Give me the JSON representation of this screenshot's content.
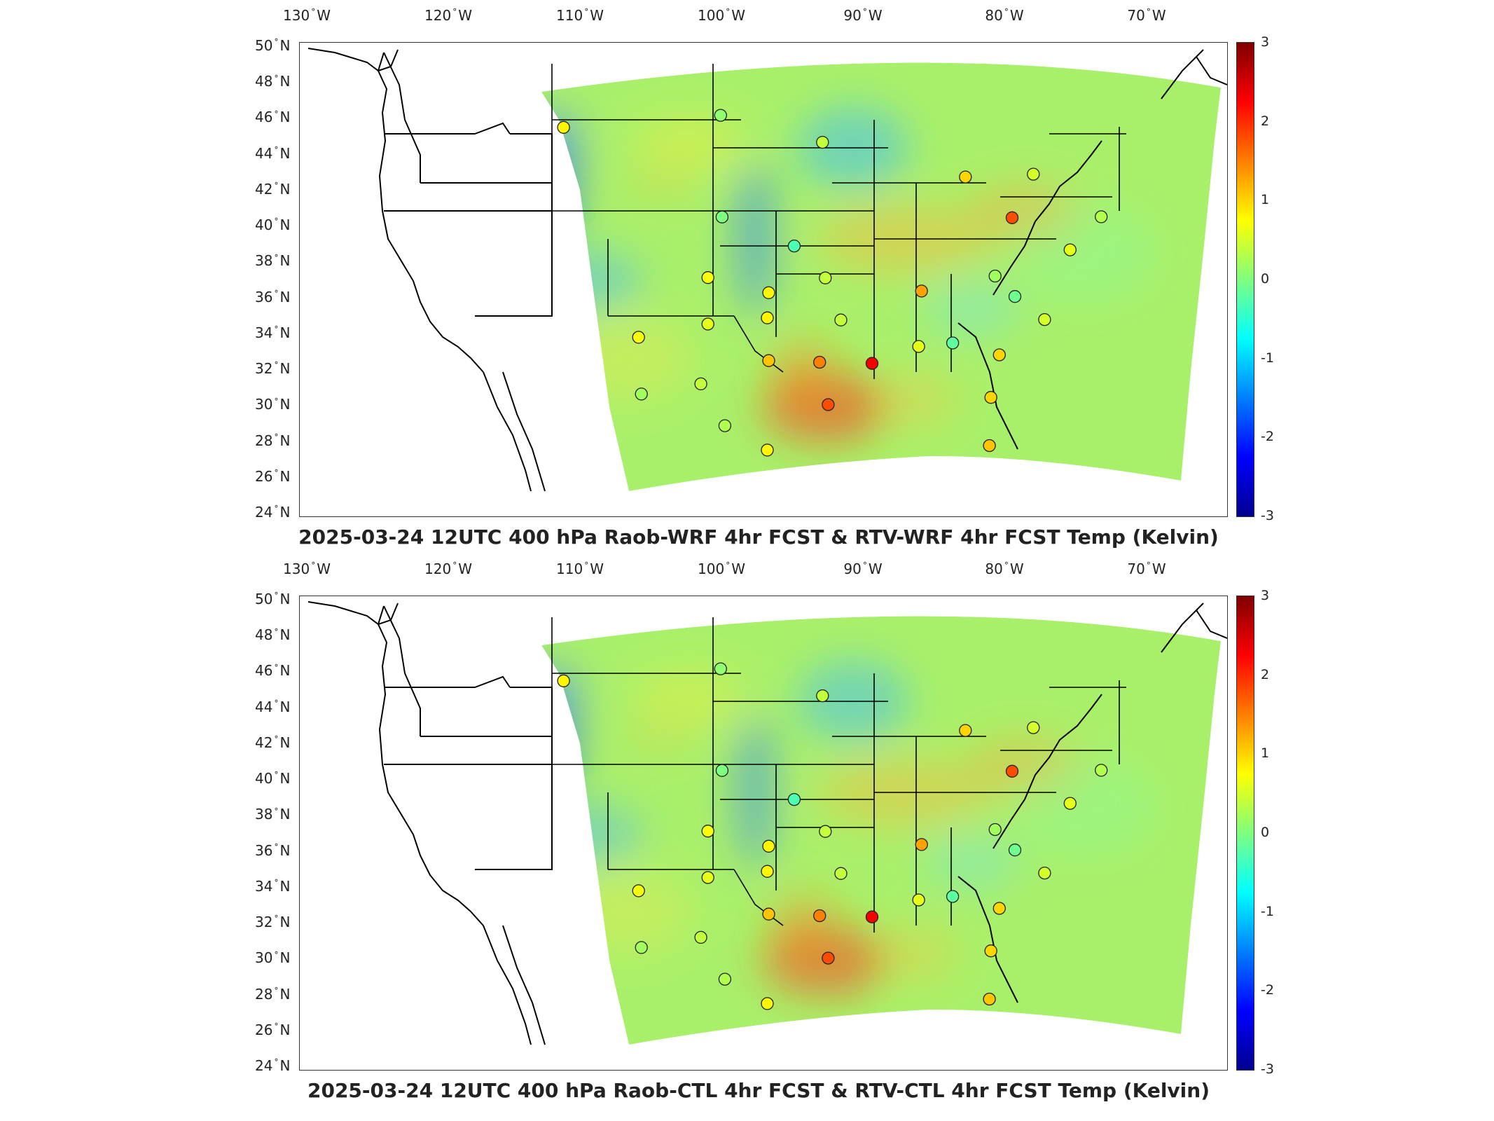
{
  "lon_labels": [
    {
      "deg": "130",
      "hemi": "W"
    },
    {
      "deg": "120",
      "hemi": "W"
    },
    {
      "deg": "110",
      "hemi": "W"
    },
    {
      "deg": "100",
      "hemi": "W"
    },
    {
      "deg": "90",
      "hemi": "W"
    },
    {
      "deg": "80",
      "hemi": "W"
    },
    {
      "deg": "70",
      "hemi": "W"
    }
  ],
  "lat_labels": [
    {
      "deg": "50",
      "hemi": "N"
    },
    {
      "deg": "48",
      "hemi": "N"
    },
    {
      "deg": "46",
      "hemi": "N"
    },
    {
      "deg": "44",
      "hemi": "N"
    },
    {
      "deg": "42",
      "hemi": "N"
    },
    {
      "deg": "40",
      "hemi": "N"
    },
    {
      "deg": "38",
      "hemi": "N"
    },
    {
      "deg": "36",
      "hemi": "N"
    },
    {
      "deg": "34",
      "hemi": "N"
    },
    {
      "deg": "32",
      "hemi": "N"
    },
    {
      "deg": "30",
      "hemi": "N"
    },
    {
      "deg": "28",
      "hemi": "N"
    },
    {
      "deg": "26",
      "hemi": "N"
    },
    {
      "deg": "24",
      "hemi": "N"
    }
  ],
  "colorbar": {
    "ticks": [
      "3",
      "2",
      "1",
      "0",
      "-1",
      "-2",
      "-3"
    ],
    "range": [
      -3,
      3
    ],
    "colormap": "jet"
  },
  "panels": [
    {
      "id": "top",
      "title": "2025-03-24 12UTC 400 hPa Raob-WRF 4hr FCST & RTV-WRF 4hr FCST Temp (Kelvin)"
    },
    {
      "id": "bottom",
      "title": "2025-03-24 12UTC 400 hPa Raob-CTL 4hr FCST & RTV-CTL 4hr FCST Temp (Kelvin)"
    }
  ],
  "stations": [
    {
      "lon": -111.9,
      "lat": 47.5,
      "value": 0.8
    },
    {
      "lon": -100.8,
      "lat": 46.8,
      "value": 0.1
    },
    {
      "lon": -93.6,
      "lat": 44.8,
      "value": 0.4
    },
    {
      "lon": -83.5,
      "lat": 42.7,
      "value": 1.0
    },
    {
      "lon": -78.7,
      "lat": 43.0,
      "value": 0.5
    },
    {
      "lon": -80.2,
      "lat": 40.5,
      "value": 1.8
    },
    {
      "lon": -100.7,
      "lat": 41.1,
      "value": 0.0
    },
    {
      "lon": -95.6,
      "lat": 39.1,
      "value": -0.3
    },
    {
      "lon": -101.7,
      "lat": 37.8,
      "value": 0.7
    },
    {
      "lon": -97.4,
      "lat": 36.6,
      "value": 0.8
    },
    {
      "lon": -93.4,
      "lat": 37.2,
      "value": 0.4
    },
    {
      "lon": -86.6,
      "lat": 36.3,
      "value": 1.3
    },
    {
      "lon": -81.4,
      "lat": 37.2,
      "value": 0.2
    },
    {
      "lon": -80.0,
      "lat": 36.1,
      "value": -0.1
    },
    {
      "lon": -106.6,
      "lat": 35.0,
      "value": 0.7
    },
    {
      "lon": -101.7,
      "lat": 35.2,
      "value": 0.6
    },
    {
      "lon": -97.5,
      "lat": 35.2,
      "value": 0.8
    },
    {
      "lon": -92.3,
      "lat": 34.8,
      "value": 0.4
    },
    {
      "lon": -97.4,
      "lat": 32.8,
      "value": 1.1
    },
    {
      "lon": -93.8,
      "lat": 32.5,
      "value": 1.5
    },
    {
      "lon": -90.1,
      "lat": 32.3,
      "value": 2.3
    },
    {
      "lon": -86.8,
      "lat": 33.2,
      "value": 0.6
    },
    {
      "lon": -84.4,
      "lat": 33.4,
      "value": -0.2
    },
    {
      "lon": -81.1,
      "lat": 32.8,
      "value": 1.0
    },
    {
      "lon": -77.9,
      "lat": 34.9,
      "value": 0.5
    },
    {
      "lon": -106.4,
      "lat": 31.8,
      "value": 0.2
    },
    {
      "lon": -102.2,
      "lat": 31.9,
      "value": 0.4
    },
    {
      "lon": -100.5,
      "lat": 29.4,
      "value": 0.3
    },
    {
      "lon": -97.5,
      "lat": 27.8,
      "value": 0.8
    },
    {
      "lon": -93.2,
      "lat": 30.1,
      "value": 1.8
    },
    {
      "lon": -81.7,
      "lat": 30.4,
      "value": 1.0
    },
    {
      "lon": -81.8,
      "lat": 27.7,
      "value": 1.1
    },
    {
      "lon": -76.1,
      "lat": 38.9,
      "value": 0.6
    },
    {
      "lon": -73.9,
      "lat": 40.9,
      "value": 0.3
    }
  ]
}
